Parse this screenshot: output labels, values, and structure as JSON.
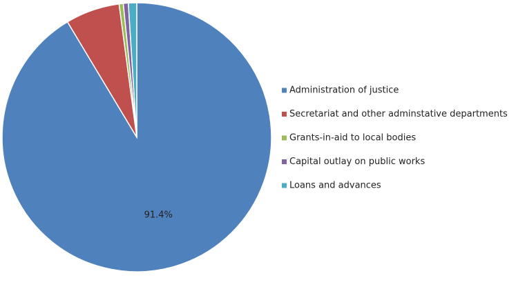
{
  "chart_data": {
    "type": "pie",
    "categories": [
      "Administration of justice",
      "Secretariat and other adminstative departments",
      "Grants-in-aid to local bodies",
      "Capital outlay on public works",
      "Loans and advances"
    ],
    "values": [
      91.4,
      6.5,
      0.5,
      0.6,
      1.0
    ],
    "value_labels": [
      "91.4%",
      null,
      null,
      null,
      null
    ],
    "colors": [
      "#4f81bd",
      "#c0504d",
      "#9bbb59",
      "#8064a2",
      "#4bacc6"
    ],
    "legend": "right"
  }
}
